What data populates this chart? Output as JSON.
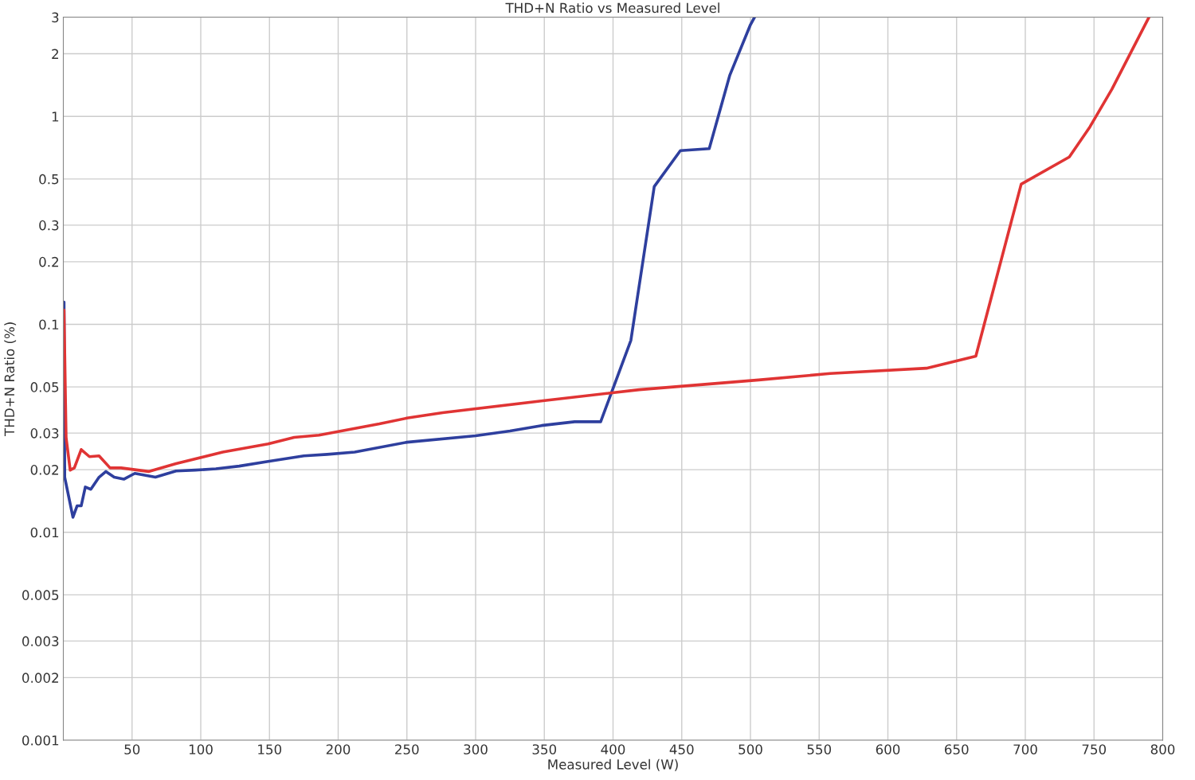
{
  "chart_data": {
    "type": "line",
    "title": "THD+N Ratio vs Measured Level",
    "xlabel": "Measured Level (W)",
    "ylabel": "THD+N Ratio (%)",
    "log": "y",
    "grid": true,
    "line_style": "solid",
    "xlim": [
      0,
      800
    ],
    "xticks": [
      50,
      100,
      150,
      200,
      250,
      300,
      350,
      400,
      450,
      500,
      550,
      600,
      650,
      700,
      750,
      800
    ],
    "ylim": [
      0.001,
      3
    ],
    "yticks": [
      0.001,
      0.002,
      0.003,
      0.005,
      0.01,
      0.02,
      0.03,
      0.05,
      0.1,
      0.2,
      0.3,
      0.5,
      1,
      2,
      3
    ],
    "series": [
      {
        "color": "#2e3f9e",
        "x": [
          0.5,
          1,
          7,
          10,
          13,
          16,
          20,
          26,
          31,
          37,
          44,
          52,
          67,
          82,
          96,
          111,
          128,
          149,
          175,
          192,
          212,
          250,
          300,
          325,
          348,
          372,
          391,
          413,
          430,
          449,
          470,
          485,
          500,
          503
        ],
        "values": [
          0.128,
          0.0184,
          0.0118,
          0.0134,
          0.0134,
          0.0165,
          0.0161,
          0.0184,
          0.0196,
          0.0184,
          0.018,
          0.0192,
          0.0184,
          0.0197,
          0.0199,
          0.0202,
          0.0208,
          0.0219,
          0.0233,
          0.0237,
          0.0243,
          0.0271,
          0.0291,
          0.0307,
          0.0326,
          0.034,
          0.034,
          0.0838,
          0.46,
          0.684,
          0.7,
          1.58,
          2.76,
          3.0
        ]
      },
      {
        "color": "#e03434",
        "x": [
          0.5,
          2,
          5,
          8,
          13,
          19,
          26,
          34,
          42,
          62,
          82,
          116,
          149,
          168,
          186,
          230,
          250,
          276,
          349,
          419,
          506,
          558,
          628,
          664,
          697,
          732,
          747,
          763,
          790
        ],
        "values": [
          0.117,
          0.0286,
          0.0199,
          0.0204,
          0.025,
          0.0231,
          0.0233,
          0.0204,
          0.0204,
          0.0196,
          0.0214,
          0.0243,
          0.0266,
          0.0286,
          0.0293,
          0.0332,
          0.0354,
          0.0376,
          0.0429,
          0.0485,
          0.054,
          0.058,
          0.0615,
          0.0703,
          0.472,
          0.638,
          0.89,
          1.35,
          3.0
        ]
      }
    ]
  }
}
